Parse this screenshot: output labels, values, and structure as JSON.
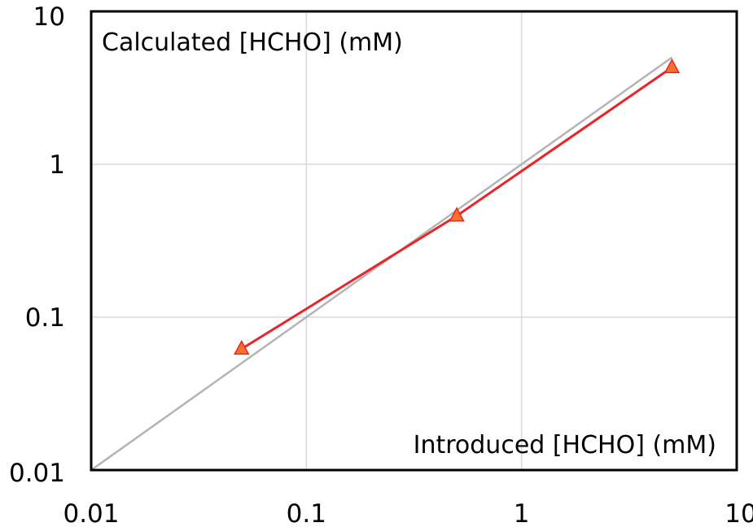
{
  "chart_data": {
    "type": "line",
    "title": "",
    "xlabel": "Introduced [HCHO] (mM)",
    "ylabel": "Calculated [HCHO] (mM)",
    "xscale": "log",
    "yscale": "log",
    "xlim": [
      0.01,
      10
    ],
    "ylim": [
      0.01,
      10
    ],
    "grid": true,
    "x_ticks": [
      "0.01",
      "0.1",
      "1",
      "10"
    ],
    "y_ticks": [
      "0.01",
      "0.1",
      "1",
      "10"
    ],
    "series": [
      {
        "x": [
          0.05,
          0.5,
          5
        ],
        "y": [
          0.062,
          0.46,
          4.3
        ],
        "marker": "triangle",
        "color": "#e8262a",
        "marker_fill": "#f4722b"
      }
    ],
    "reference_line": {
      "x": [
        0.01,
        5
      ],
      "y": [
        0.01,
        5
      ],
      "color": "#b4b4b4"
    },
    "colors": {
      "grid": "#d9d9d9",
      "frame": "#000000"
    }
  }
}
